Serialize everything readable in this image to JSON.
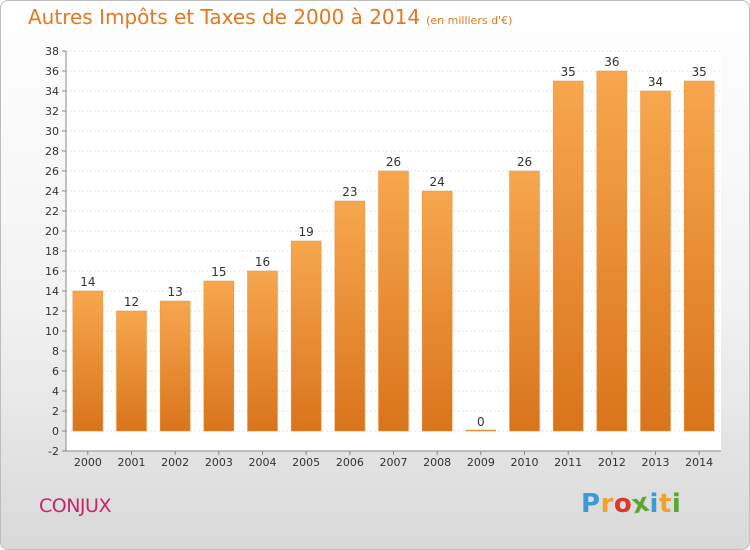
{
  "title": "Autres Impôts et Taxes de 2000 à 2014",
  "unit_note": "(en milliers d'€)",
  "commune": "CONJUX",
  "logo": {
    "text": "Proxiti",
    "letters": [
      {
        "ch": "P",
        "color": "#3a9bd5"
      },
      {
        "ch": "r",
        "color": "#f0a32b"
      },
      {
        "ch": "o",
        "color": "#e3352c"
      },
      {
        "ch": "x",
        "color": "#5aa832"
      },
      {
        "ch": "i",
        "color": "#3a9bd5"
      },
      {
        "ch": "t",
        "color": "#f0a32b"
      },
      {
        "ch": "i",
        "color": "#5aa832"
      }
    ]
  },
  "colors": {
    "title": "#e4781e",
    "commune": "#c8246c",
    "bar_light": "#f7a74e",
    "bar_dark": "#d9741c"
  },
  "chart_data": {
    "type": "bar",
    "title": "Autres Impôts et Taxes de 2000 à 2014",
    "subtitle": "(en milliers d'€)",
    "categories": [
      "2000",
      "2001",
      "2002",
      "2003",
      "2004",
      "2005",
      "2006",
      "2007",
      "2008",
      "2009",
      "2010",
      "2011",
      "2012",
      "2013",
      "2014"
    ],
    "values": [
      14,
      12,
      13,
      15,
      16,
      19,
      23,
      26,
      24,
      0,
      26,
      35,
      36,
      34,
      35
    ],
    "ylim": [
      -2,
      38
    ],
    "yticks": [
      -2,
      0,
      2,
      4,
      6,
      8,
      10,
      12,
      14,
      16,
      18,
      20,
      22,
      24,
      26,
      28,
      30,
      32,
      34,
      36,
      38
    ],
    "grid": true,
    "xlabel": "",
    "ylabel": ""
  }
}
